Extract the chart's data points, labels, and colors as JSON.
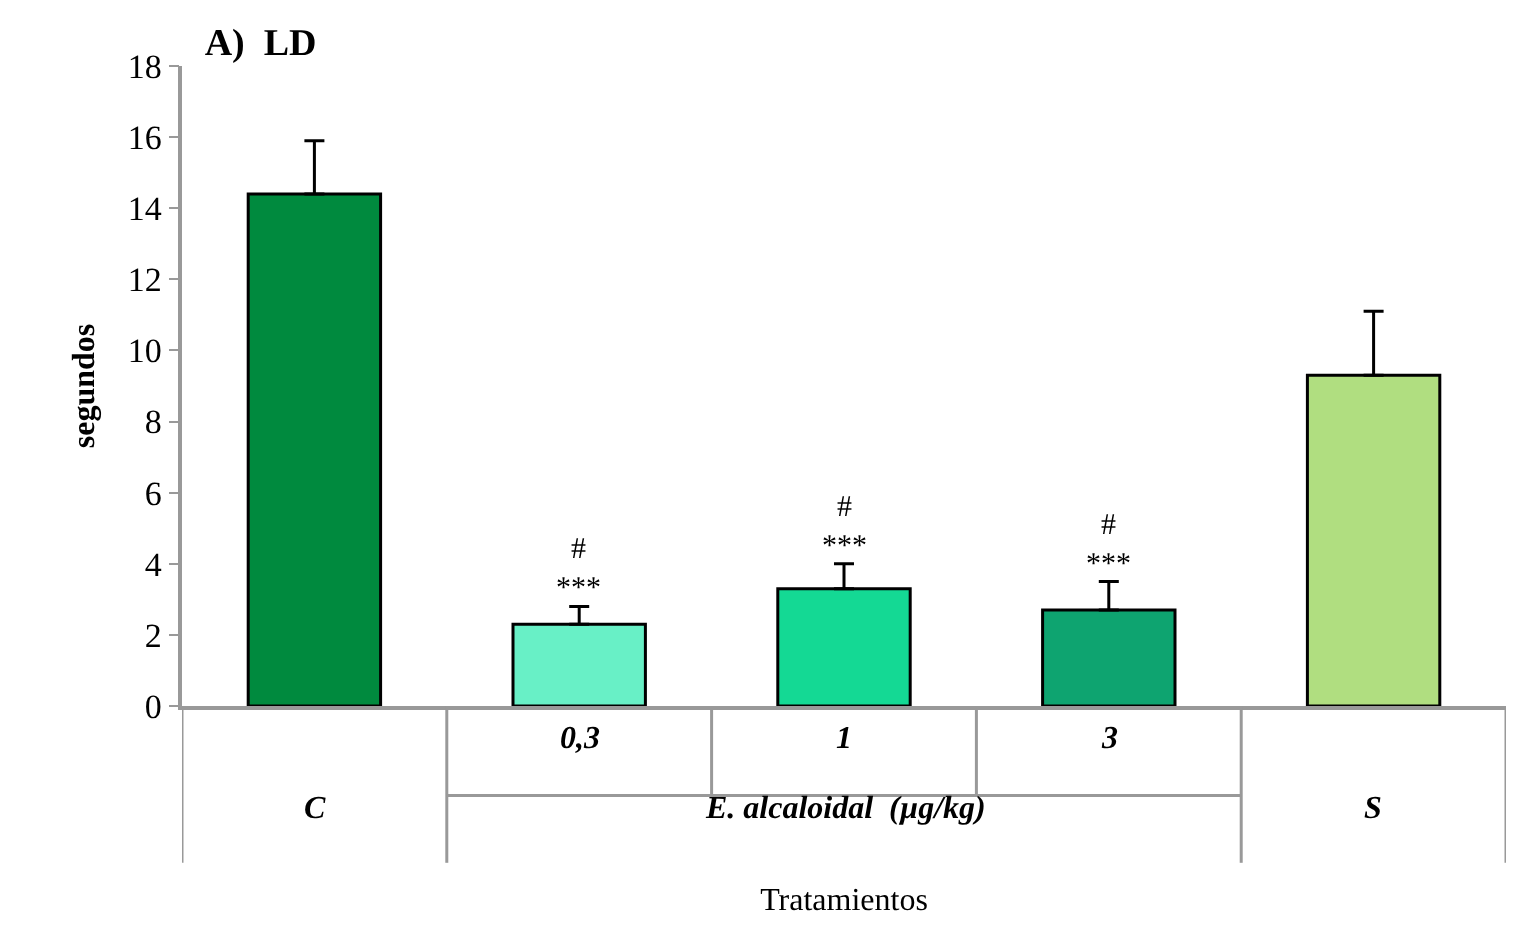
{
  "chart_data": {
    "type": "bar",
    "title": "A)  LD",
    "xlabel": "Tratamientos",
    "ylabel": "segundos",
    "categories": [
      "C",
      "0,3",
      "1",
      "3",
      "S"
    ],
    "values": [
      14.4,
      2.3,
      3.3,
      2.7,
      9.3
    ],
    "errors": [
      [
        14.4,
        15.9
      ],
      [
        2.3,
        2.8
      ],
      [
        3.3,
        4.0
      ],
      [
        2.7,
        3.5
      ],
      [
        9.3,
        11.1
      ]
    ],
    "value_labels": [
      null,
      "#\n***",
      "#\n***",
      "#\n***",
      null
    ],
    "colors": [
      "#008a3e",
      "#68f0c6",
      "#14d994",
      "#0ea470",
      "#b0de80"
    ],
    "ylim": [
      0,
      18
    ],
    "yticks": [
      0,
      2,
      4,
      6,
      8,
      10,
      12,
      14,
      16,
      18
    ],
    "legend": false,
    "annotations": [
      "E. alcaloidal  (µg/kg)"
    ]
  }
}
